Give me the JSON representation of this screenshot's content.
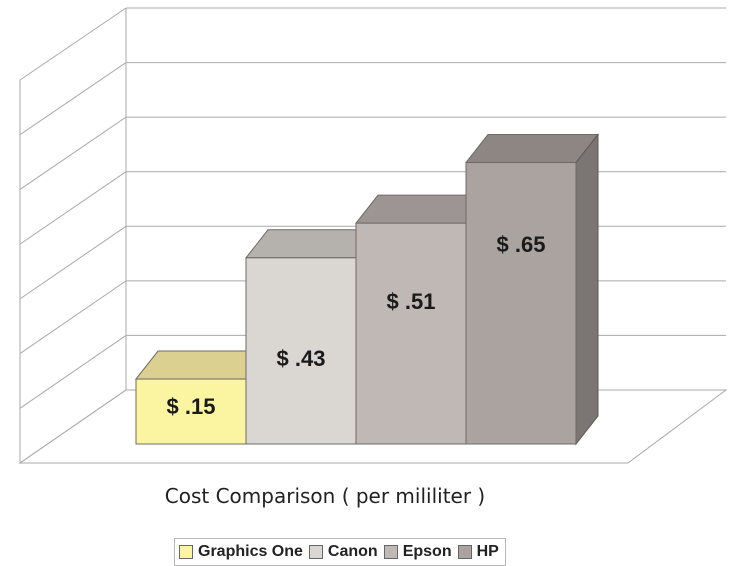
{
  "chart_data": {
    "type": "bar",
    "categories": [
      "Graphics One",
      "Canon",
      "Epson",
      "HP"
    ],
    "values": [
      0.15,
      0.43,
      0.51,
      0.65
    ],
    "data_labels": [
      "$ .15",
      "$ .43",
      "$ .51",
      "$ .65"
    ],
    "xlabel": "Cost Comparison ( per mililiter )",
    "ylabel": "",
    "ylim": [
      0,
      0.8
    ],
    "grid": true,
    "legend_placement": "bottom",
    "style": "3d",
    "colors": {
      "Graphics One": "#fbf5a2",
      "Canon": "#dad7d3",
      "Epson": "#bfb8b5",
      "HP": "#aaa3a0"
    },
    "top_colors": {
      "Graphics One": "#dcd090",
      "Canon": "#b5b1ad",
      "Epson": "#9c9593",
      "HP": "#8d8683"
    },
    "side_color": "#7b7573"
  },
  "legend": {
    "items": [
      {
        "label": "Graphics One",
        "color": "#fbf5a2"
      },
      {
        "label": "Canon",
        "color": "#dad7d3"
      },
      {
        "label": "Epson",
        "color": "#bfb8b5"
      },
      {
        "label": "HP",
        "color": "#aaa3a0"
      }
    ]
  }
}
